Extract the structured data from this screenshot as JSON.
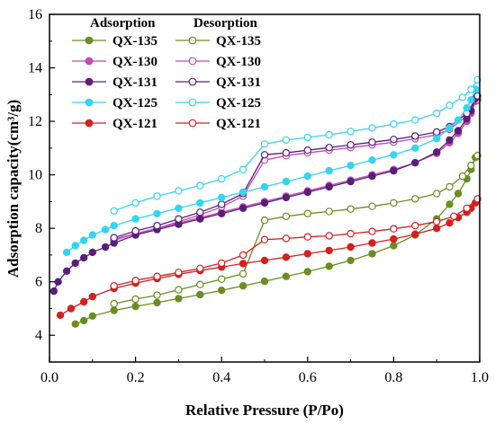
{
  "chart_data": {
    "type": "line",
    "xlabel": "Relative Pressure (P/Po)",
    "ylabel": "Adsorption capacity(cm³/g)",
    "xlim": [
      0,
      1
    ],
    "ylim": [
      3,
      16
    ],
    "x_ticks": [
      0,
      0.2,
      0.4,
      0.6,
      0.8,
      1.0
    ],
    "y_ticks": [
      4,
      6,
      8,
      10,
      12,
      14,
      16
    ],
    "x_tick_labels": [
      "0.0",
      "0.2",
      "0.4",
      "0.6",
      "0.8",
      "1.0"
    ],
    "y_tick_labels": [
      "4",
      "6",
      "8",
      "10",
      "12",
      "14",
      "16"
    ],
    "grid": false,
    "legend_placement": "top-left",
    "legend_headers": [
      "Adsorption",
      "Desorption"
    ],
    "series": [
      {
        "name": "QX-135",
        "branch": "adsorption",
        "color": "#6b8e23",
        "filled": true,
        "points": [
          [
            0.06,
            4.42
          ],
          [
            0.08,
            4.55
          ],
          [
            0.1,
            4.72
          ],
          [
            0.15,
            4.93
          ],
          [
            0.2,
            5.08
          ],
          [
            0.25,
            5.22
          ],
          [
            0.3,
            5.37
          ],
          [
            0.35,
            5.52
          ],
          [
            0.4,
            5.68
          ],
          [
            0.45,
            5.85
          ],
          [
            0.5,
            6.02
          ],
          [
            0.55,
            6.2
          ],
          [
            0.6,
            6.38
          ],
          [
            0.65,
            6.58
          ],
          [
            0.7,
            6.8
          ],
          [
            0.75,
            7.05
          ],
          [
            0.8,
            7.35
          ],
          [
            0.85,
            7.75
          ],
          [
            0.9,
            8.35
          ],
          [
            0.93,
            8.9
          ],
          [
            0.95,
            9.3
          ],
          [
            0.97,
            9.85
          ],
          [
            0.98,
            10.2
          ],
          [
            0.99,
            10.65
          ]
        ]
      },
      {
        "name": "QX-135",
        "branch": "desorption",
        "color": "#6b8e23",
        "filled": false,
        "points": [
          [
            0.995,
            10.72
          ],
          [
            0.98,
            10.35
          ],
          [
            0.96,
            9.95
          ],
          [
            0.93,
            9.55
          ],
          [
            0.9,
            9.3
          ],
          [
            0.85,
            9.1
          ],
          [
            0.8,
            8.95
          ],
          [
            0.75,
            8.82
          ],
          [
            0.7,
            8.72
          ],
          [
            0.65,
            8.63
          ],
          [
            0.6,
            8.55
          ],
          [
            0.55,
            8.45
          ],
          [
            0.5,
            8.3
          ],
          [
            0.45,
            6.3
          ],
          [
            0.4,
            6.1
          ],
          [
            0.35,
            5.9
          ],
          [
            0.3,
            5.7
          ],
          [
            0.25,
            5.5
          ],
          [
            0.2,
            5.35
          ],
          [
            0.15,
            5.18
          ]
        ]
      },
      {
        "name": "QX-130",
        "branch": "adsorption",
        "color": "#c04cb0",
        "filled": true,
        "points": [
          [
            0.15,
            7.55
          ],
          [
            0.2,
            7.8
          ],
          [
            0.25,
            8.0
          ],
          [
            0.3,
            8.2
          ],
          [
            0.35,
            8.4
          ],
          [
            0.4,
            8.6
          ],
          [
            0.45,
            8.8
          ],
          [
            0.5,
            9.0
          ],
          [
            0.55,
            9.2
          ],
          [
            0.6,
            9.4
          ],
          [
            0.65,
            9.6
          ],
          [
            0.7,
            9.8
          ],
          [
            0.75,
            10.0
          ],
          [
            0.8,
            10.2
          ],
          [
            0.85,
            10.45
          ],
          [
            0.9,
            10.8
          ],
          [
            0.93,
            11.2
          ],
          [
            0.95,
            11.55
          ],
          [
            0.97,
            12.0
          ],
          [
            0.98,
            12.3
          ],
          [
            0.99,
            12.75
          ]
        ]
      },
      {
        "name": "QX-130",
        "branch": "desorption",
        "color": "#c04cb0",
        "filled": false,
        "points": [
          [
            0.995,
            12.8
          ],
          [
            0.97,
            12.2
          ],
          [
            0.93,
            11.7
          ],
          [
            0.9,
            11.5
          ],
          [
            0.85,
            11.35
          ],
          [
            0.8,
            11.22
          ],
          [
            0.75,
            11.12
          ],
          [
            0.7,
            11.02
          ],
          [
            0.65,
            10.92
          ],
          [
            0.6,
            10.82
          ],
          [
            0.55,
            10.72
          ],
          [
            0.5,
            10.55
          ],
          [
            0.45,
            9.2
          ],
          [
            0.4,
            8.8
          ],
          [
            0.35,
            8.5
          ],
          [
            0.3,
            8.25
          ],
          [
            0.25,
            8.0
          ],
          [
            0.2,
            7.8
          ],
          [
            0.15,
            7.6
          ]
        ]
      },
      {
        "name": "QX-131",
        "branch": "adsorption",
        "color": "#5a1e7a",
        "filled": true,
        "points": [
          [
            0.01,
            5.65
          ],
          [
            0.02,
            6.0
          ],
          [
            0.04,
            6.4
          ],
          [
            0.06,
            6.7
          ],
          [
            0.08,
            6.9
          ],
          [
            0.1,
            7.1
          ],
          [
            0.13,
            7.3
          ],
          [
            0.15,
            7.45
          ],
          [
            0.2,
            7.75
          ],
          [
            0.25,
            7.95
          ],
          [
            0.3,
            8.15
          ],
          [
            0.35,
            8.35
          ],
          [
            0.4,
            8.55
          ],
          [
            0.45,
            8.75
          ],
          [
            0.5,
            8.95
          ],
          [
            0.55,
            9.15
          ],
          [
            0.6,
            9.35
          ],
          [
            0.65,
            9.55
          ],
          [
            0.7,
            9.75
          ],
          [
            0.75,
            9.95
          ],
          [
            0.8,
            10.15
          ],
          [
            0.85,
            10.45
          ],
          [
            0.9,
            10.85
          ],
          [
            0.93,
            11.3
          ],
          [
            0.95,
            11.65
          ],
          [
            0.97,
            12.1
          ],
          [
            0.98,
            12.4
          ],
          [
            0.99,
            12.85
          ]
        ]
      },
      {
        "name": "QX-131",
        "branch": "desorption",
        "color": "#5a1e7a",
        "filled": false,
        "points": [
          [
            0.995,
            12.95
          ],
          [
            0.97,
            12.3
          ],
          [
            0.93,
            11.8
          ],
          [
            0.9,
            11.6
          ],
          [
            0.85,
            11.45
          ],
          [
            0.8,
            11.32
          ],
          [
            0.75,
            11.22
          ],
          [
            0.7,
            11.12
          ],
          [
            0.65,
            11.02
          ],
          [
            0.6,
            10.92
          ],
          [
            0.55,
            10.82
          ],
          [
            0.5,
            10.75
          ],
          [
            0.45,
            9.3
          ],
          [
            0.4,
            8.9
          ],
          [
            0.35,
            8.6
          ],
          [
            0.3,
            8.35
          ],
          [
            0.25,
            8.1
          ],
          [
            0.2,
            7.9
          ],
          [
            0.15,
            7.65
          ]
        ]
      },
      {
        "name": "QX-125",
        "branch": "adsorption",
        "color": "#35d4f0",
        "filled": true,
        "points": [
          [
            0.04,
            7.1
          ],
          [
            0.06,
            7.35
          ],
          [
            0.08,
            7.55
          ],
          [
            0.1,
            7.75
          ],
          [
            0.13,
            7.95
          ],
          [
            0.15,
            8.1
          ],
          [
            0.2,
            8.35
          ],
          [
            0.25,
            8.55
          ],
          [
            0.3,
            8.75
          ],
          [
            0.35,
            8.95
          ],
          [
            0.4,
            9.15
          ],
          [
            0.45,
            9.35
          ],
          [
            0.5,
            9.55
          ],
          [
            0.55,
            9.75
          ],
          [
            0.6,
            9.95
          ],
          [
            0.65,
            10.15
          ],
          [
            0.7,
            10.35
          ],
          [
            0.75,
            10.55
          ],
          [
            0.8,
            10.75
          ],
          [
            0.85,
            11.0
          ],
          [
            0.9,
            11.35
          ],
          [
            0.93,
            11.75
          ],
          [
            0.95,
            12.05
          ],
          [
            0.97,
            12.5
          ],
          [
            0.98,
            12.8
          ],
          [
            0.99,
            13.2
          ]
        ]
      },
      {
        "name": "QX-125",
        "branch": "desorption",
        "color": "#35d4f0",
        "filled": false,
        "points": [
          [
            0.995,
            13.55
          ],
          [
            0.98,
            13.2
          ],
          [
            0.96,
            12.9
          ],
          [
            0.93,
            12.6
          ],
          [
            0.9,
            12.3
          ],
          [
            0.85,
            12.05
          ],
          [
            0.8,
            11.9
          ],
          [
            0.75,
            11.75
          ],
          [
            0.7,
            11.62
          ],
          [
            0.65,
            11.5
          ],
          [
            0.6,
            11.4
          ],
          [
            0.55,
            11.3
          ],
          [
            0.5,
            11.15
          ],
          [
            0.45,
            10.2
          ],
          [
            0.4,
            9.85
          ],
          [
            0.35,
            9.6
          ],
          [
            0.3,
            9.4
          ],
          [
            0.25,
            9.2
          ],
          [
            0.2,
            8.95
          ],
          [
            0.15,
            8.65
          ]
        ]
      },
      {
        "name": "QX-121",
        "branch": "adsorption",
        "color": "#d42020",
        "filled": true,
        "points": [
          [
            0.025,
            4.75
          ],
          [
            0.05,
            5.0
          ],
          [
            0.08,
            5.25
          ],
          [
            0.1,
            5.45
          ],
          [
            0.15,
            5.75
          ],
          [
            0.2,
            5.95
          ],
          [
            0.25,
            6.12
          ],
          [
            0.3,
            6.28
          ],
          [
            0.35,
            6.42
          ],
          [
            0.4,
            6.55
          ],
          [
            0.45,
            6.68
          ],
          [
            0.5,
            6.8
          ],
          [
            0.55,
            6.92
          ],
          [
            0.6,
            7.05
          ],
          [
            0.65,
            7.17
          ],
          [
            0.7,
            7.3
          ],
          [
            0.75,
            7.45
          ],
          [
            0.8,
            7.6
          ],
          [
            0.85,
            7.78
          ],
          [
            0.9,
            8.0
          ],
          [
            0.93,
            8.2
          ],
          [
            0.95,
            8.4
          ],
          [
            0.97,
            8.6
          ],
          [
            0.98,
            8.75
          ],
          [
            0.99,
            8.95
          ]
        ]
      },
      {
        "name": "QX-121",
        "branch": "desorption",
        "color": "#d42020",
        "filled": false,
        "points": [
          [
            0.995,
            9.1
          ],
          [
            0.97,
            8.75
          ],
          [
            0.94,
            8.45
          ],
          [
            0.9,
            8.25
          ],
          [
            0.85,
            8.1
          ],
          [
            0.8,
            7.98
          ],
          [
            0.75,
            7.88
          ],
          [
            0.7,
            7.8
          ],
          [
            0.65,
            7.72
          ],
          [
            0.6,
            7.68
          ],
          [
            0.55,
            7.62
          ],
          [
            0.5,
            7.58
          ],
          [
            0.45,
            7.0
          ],
          [
            0.4,
            6.7
          ],
          [
            0.35,
            6.5
          ],
          [
            0.3,
            6.35
          ],
          [
            0.25,
            6.2
          ],
          [
            0.2,
            6.05
          ],
          [
            0.15,
            5.85
          ]
        ]
      }
    ]
  }
}
